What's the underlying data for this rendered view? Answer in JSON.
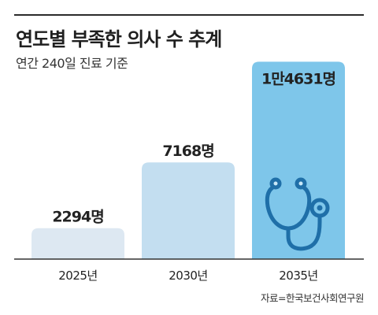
{
  "title": "연도별 부족한 의사 수 추계",
  "subtitle": "연간 240일 진료 기준",
  "source": "자료=한국보건사회연구원",
  "icon": "stethoscope-icon",
  "colors": {
    "bars": [
      "#dde8f2",
      "#c3def0",
      "#7ec6ea"
    ],
    "bar_outline": "#ffffff",
    "axis": "#333333",
    "icon": "#1f6fa8",
    "text": "#222222"
  },
  "chart_data": {
    "type": "bar",
    "categories": [
      "2025년",
      "2030년",
      "2035년"
    ],
    "values": [
      2294,
      7168,
      14631
    ],
    "value_labels": [
      "2294명",
      "7168명",
      "1만4631명"
    ],
    "title": "연도별 부족한 의사 수 추계",
    "subtitle": "연간 240일 진료 기준",
    "xlabel": "",
    "ylabel": "",
    "ylim": [
      0,
      15000
    ],
    "grid": false,
    "legend": "none"
  }
}
